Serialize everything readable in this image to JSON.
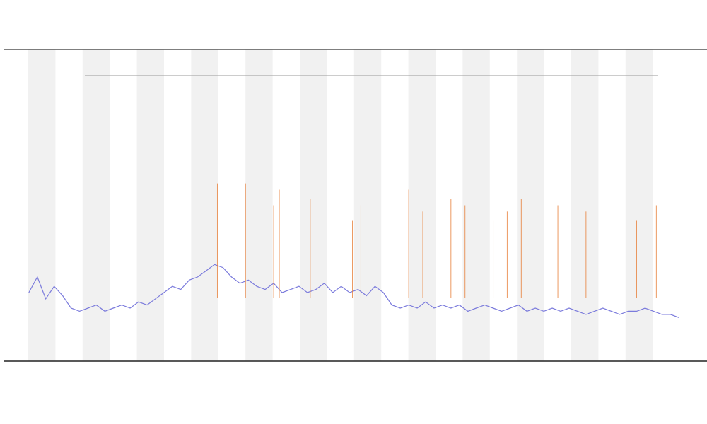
{
  "chart_data": {
    "type": "line",
    "xlim": [
      0,
      250
    ],
    "ylim": [
      0,
      100
    ],
    "series": [
      {
        "color": "#7b7bdc",
        "x": [
          9,
          12,
          15,
          18,
          21,
          24,
          27,
          30,
          33,
          36,
          39,
          42,
          45,
          48,
          51,
          54,
          57,
          60,
          63,
          66,
          69,
          72,
          75,
          78,
          81,
          84,
          87,
          90,
          93,
          96,
          99,
          102,
          105,
          108,
          111,
          114,
          117,
          120,
          123,
          126,
          129,
          132,
          135,
          138,
          141,
          144,
          147,
          150,
          153,
          156,
          159,
          162,
          165,
          168,
          171,
          174,
          177,
          180,
          183,
          186,
          189,
          192,
          195,
          198,
          201,
          204,
          207,
          210,
          213,
          216,
          219,
          222,
          225,
          228,
          231,
          234,
          237,
          240
        ],
        "values": [
          22,
          27,
          20,
          24,
          21,
          17,
          16,
          17,
          18,
          16,
          17,
          18,
          17,
          19,
          18,
          20,
          22,
          24,
          23,
          26,
          27,
          29,
          31,
          30,
          27,
          25,
          26,
          24,
          23,
          25,
          22,
          23,
          24,
          22,
          23,
          25,
          22,
          24,
          22,
          23,
          21,
          24,
          22,
          18,
          17,
          18,
          17,
          19,
          17,
          18,
          17,
          18,
          16,
          17,
          18,
          17,
          16,
          17,
          18,
          16,
          17,
          16,
          17,
          16,
          17,
          16,
          15,
          16,
          17,
          16,
          15,
          16,
          16,
          17,
          16,
          15,
          15,
          14
        ]
      },
      {
        "type": "spike",
        "color": "#e8803a",
        "x": [
          76,
          86,
          96,
          98,
          109,
          124,
          127,
          144,
          149,
          159,
          164,
          174,
          179,
          184,
          197,
          207,
          225,
          232
        ],
        "values": [
          57,
          57,
          50,
          55,
          52,
          45,
          50,
          55,
          48,
          52,
          50,
          45,
          48,
          52,
          50,
          48,
          45,
          50
        ]
      }
    ]
  }
}
